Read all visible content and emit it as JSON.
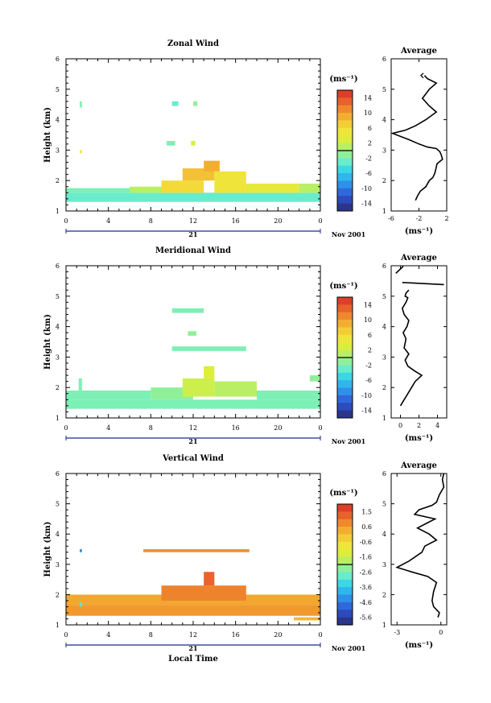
{
  "chart_data": [
    {
      "type": "heatmap",
      "title": "Zonal Wind",
      "ylabel": "Height (km)",
      "xlabel": "",
      "xlim": [
        0,
        24
      ],
      "ylim": [
        1,
        6
      ],
      "xticks": [
        "0",
        "4",
        "8",
        "12",
        "16",
        "20",
        "0"
      ],
      "yticks": [
        "1",
        "2",
        "3",
        "4",
        "5",
        "6"
      ],
      "date_day": "21",
      "date_label": "Nov 2001",
      "colorbar": {
        "unit": "(ms⁻¹)",
        "ticks": [
          "14",
          "10",
          "6",
          "2",
          "-2",
          "-6",
          "-10",
          "-14"
        ],
        "min": -16,
        "max": 16
      },
      "cell_groups": [
        {
          "x": [
            0,
            24
          ],
          "y": [
            1.3,
            1.6
          ],
          "value": -3
        },
        {
          "x": [
            0,
            6
          ],
          "y": [
            1.6,
            1.75
          ],
          "value": -2
        },
        {
          "x": [
            6,
            9
          ],
          "y": [
            1.6,
            1.8
          ],
          "value": 1
        },
        {
          "x": [
            9,
            13
          ],
          "y": [
            1.6,
            2.0
          ],
          "value": 6
        },
        {
          "x": [
            11,
            14
          ],
          "y": [
            2.0,
            2.4
          ],
          "value": 8
        },
        {
          "x": [
            13,
            14.5
          ],
          "y": [
            2.3,
            2.65
          ],
          "value": 9
        },
        {
          "x": [
            14,
            17
          ],
          "y": [
            1.6,
            2.3
          ],
          "value": 5
        },
        {
          "x": [
            17,
            22
          ],
          "y": [
            1.6,
            1.9
          ],
          "value": 4
        },
        {
          "x": [
            22,
            24
          ],
          "y": [
            1.6,
            1.9
          ],
          "value": 1
        },
        {
          "x": [
            1.3,
            1.5
          ],
          "y": [
            4.4,
            4.6
          ],
          "value": -2
        },
        {
          "x": [
            1.3,
            1.5
          ],
          "y": [
            2.9,
            3.0
          ],
          "value": 5
        },
        {
          "x": [
            10,
            10.6
          ],
          "y": [
            4.45,
            4.6
          ],
          "value": -3
        },
        {
          "x": [
            12,
            12.4
          ],
          "y": [
            4.45,
            4.6
          ],
          "value": -1
        },
        {
          "x": [
            9.5,
            10.3
          ],
          "y": [
            3.15,
            3.3
          ],
          "value": -2
        },
        {
          "x": [
            11.8,
            12.2
          ],
          "y": [
            3.15,
            3.3
          ],
          "value": 3
        }
      ],
      "average_panel": {
        "title": "Average",
        "xlabel": "(ms⁻¹)",
        "xlim": [
          -6,
          2
        ],
        "xticks": [
          "-6",
          "-2",
          "2"
        ],
        "ylim": [
          1,
          6
        ],
        "yticks": [
          "1",
          "2",
          "3",
          "4",
          "5",
          "6"
        ],
        "profile": {
          "x": [
            -2.5,
            -2.2,
            -1.8,
            -1.0,
            -0.5,
            0.0,
            0.3,
            0.5,
            0.6,
            1.4,
            1.2,
            1.0,
            0.5,
            -0.8,
            -2.0,
            -3.5,
            -5.8,
            -4.0,
            -2.5,
            -1.0,
            0.5,
            -0.5,
            -1.5,
            -1.0,
            -0.5,
            0.5,
            -0.8,
            -1.2
          ],
          "y": [
            1.35,
            1.5,
            1.65,
            1.8,
            2.0,
            2.1,
            2.25,
            2.45,
            2.55,
            2.7,
            2.85,
            2.95,
            3.05,
            3.1,
            3.2,
            3.35,
            3.55,
            3.65,
            3.8,
            4.0,
            4.25,
            4.45,
            4.7,
            4.85,
            5.0,
            5.2,
            5.35,
            5.45
          ]
        },
        "marker": {
          "x": -1.6,
          "y": 5.45
        }
      }
    },
    {
      "type": "heatmap",
      "title": "Meridional Wind",
      "ylabel": "Height (km)",
      "xlabel": "",
      "xlim": [
        0,
        24
      ],
      "ylim": [
        1,
        6
      ],
      "xticks": [
        "0",
        "4",
        "8",
        "12",
        "16",
        "20",
        "0"
      ],
      "yticks": [
        "1",
        "2",
        "3",
        "4",
        "5",
        "6"
      ],
      "date_day": "21",
      "date_label": "Nov 2001",
      "colorbar": {
        "unit": "(ms⁻¹)",
        "ticks": [
          "14",
          "10",
          "6",
          "2",
          "-2",
          "-6",
          "-10",
          "-14"
        ],
        "min": -16,
        "max": 16
      },
      "cell_groups": [
        {
          "x": [
            0,
            24
          ],
          "y": [
            1.3,
            1.6
          ],
          "value": -2
        },
        {
          "x": [
            0,
            8
          ],
          "y": [
            1.6,
            1.9
          ],
          "value": -2
        },
        {
          "x": [
            8,
            12
          ],
          "y": [
            1.6,
            2.0
          ],
          "value": -1
        },
        {
          "x": [
            11,
            14
          ],
          "y": [
            1.7,
            2.3
          ],
          "value": 2
        },
        {
          "x": [
            13,
            14
          ],
          "y": [
            2.3,
            2.7
          ],
          "value": 3
        },
        {
          "x": [
            14,
            18
          ],
          "y": [
            1.7,
            2.2
          ],
          "value": 1
        },
        {
          "x": [
            18,
            24
          ],
          "y": [
            1.6,
            1.9
          ],
          "value": -2
        },
        {
          "x": [
            1.2,
            1.5
          ],
          "y": [
            1.9,
            2.3
          ],
          "value": -2
        },
        {
          "x": [
            10,
            13
          ],
          "y": [
            4.45,
            4.6
          ],
          "value": -2
        },
        {
          "x": [
            11.5,
            12.3
          ],
          "y": [
            3.7,
            3.85
          ],
          "value": -1
        },
        {
          "x": [
            10,
            17
          ],
          "y": [
            3.2,
            3.35
          ],
          "value": -2
        },
        {
          "x": [
            23,
            24
          ],
          "y": [
            2.2,
            2.4
          ],
          "value": -1
        }
      ],
      "average_panel": {
        "title": "Average",
        "xlabel": "(ms⁻¹)",
        "xlim": [
          -1,
          5
        ],
        "xticks": [
          "0",
          "2",
          "4"
        ],
        "ylim": [
          1,
          6
        ],
        "yticks": [
          "1",
          "2",
          "3",
          "4",
          "5",
          "6"
        ],
        "profile": {
          "x": [
            0.0,
            0.4,
            0.8,
            1.2,
            1.6,
            2.3,
            1.5,
            0.8,
            0.5,
            0.9,
            0.4,
            0.6,
            0.3,
            0.7,
            0.9,
            0.4,
            0.2,
            0.6,
            0.8,
            0.5,
            0.6,
            0.9
          ],
          "y": [
            1.4,
            1.6,
            1.8,
            2.0,
            2.2,
            2.4,
            2.55,
            2.7,
            2.9,
            3.1,
            3.3,
            3.6,
            3.8,
            4.0,
            4.2,
            4.4,
            4.6,
            4.8,
            4.95,
            5.0,
            5.1,
            5.2
          ]
        },
        "upper_segment": {
          "x": [
            0.2,
            4.7
          ],
          "y": [
            5.45,
            5.38
          ]
        },
        "top_segment": {
          "x": [
            -0.5,
            0.3
          ],
          "y": [
            5.75,
            5.98
          ]
        }
      }
    },
    {
      "type": "heatmap",
      "title": "Vertical Wind",
      "ylabel": "Height (km)",
      "xlabel": "Local Time",
      "xlim": [
        0,
        24
      ],
      "ylim": [
        1,
        6
      ],
      "xticks": [
        "0",
        "4",
        "8",
        "12",
        "16",
        "20",
        "0"
      ],
      "yticks": [
        "1",
        "2",
        "3",
        "4",
        "5",
        "6"
      ],
      "date_day": "21",
      "date_label": "Nov 2001",
      "colorbar": {
        "unit": "(ms⁻¹)",
        "ticks": [
          "1.5",
          "0.6",
          "-0.6",
          "-1.6",
          "-2.6",
          "-3.6",
          "-4.6",
          "-5.6"
        ],
        "min": -6.2,
        "max": 2.0
      },
      "cell_groups": [
        {
          "x": [
            0,
            24
          ],
          "y": [
            1.3,
            1.65
          ],
          "value": 0.5
        },
        {
          "x": [
            0,
            24
          ],
          "y": [
            1.65,
            2.0
          ],
          "value": 0.3
        },
        {
          "x": [
            9,
            17
          ],
          "y": [
            1.8,
            2.3
          ],
          "value": 0.8
        },
        {
          "x": [
            13,
            14
          ],
          "y": [
            2.3,
            2.75
          ],
          "value": 1.2
        },
        {
          "x": [
            7.3,
            17.3
          ],
          "y": [
            3.4,
            3.5
          ],
          "value": 0.6
        },
        {
          "x": [
            1.3,
            1.5
          ],
          "y": [
            3.4,
            3.5
          ],
          "value": -4.5
        },
        {
          "x": [
            1.3,
            1.5
          ],
          "y": [
            1.6,
            1.75
          ],
          "value": -3.0
        },
        {
          "x": [
            21.5,
            24
          ],
          "y": [
            1.15,
            1.25
          ],
          "value": 0.1
        }
      ],
      "average_panel": {
        "title": "Average",
        "xlabel": "(ms⁻¹)",
        "xlim": [
          -3.4,
          0.4
        ],
        "xticks": [
          "-3",
          "0"
        ],
        "ylim": [
          1,
          6
        ],
        "yticks": [
          "1",
          "2",
          "3",
          "4",
          "5",
          "6"
        ],
        "profile": {
          "x": [
            -0.2,
            -0.1,
            -0.5,
            -0.6,
            -0.5,
            -0.3,
            -0.9,
            -2.0,
            -3.0,
            -2.2,
            -1.3,
            -1.1,
            -0.3,
            -0.8,
            -1.6,
            -1.0,
            -0.4,
            -1.8,
            -1.5,
            -0.6,
            -0.3,
            -0.1,
            0.2,
            0.1,
            0.2
          ],
          "y": [
            1.25,
            1.4,
            1.6,
            1.8,
            2.1,
            2.4,
            2.6,
            2.75,
            2.9,
            3.1,
            3.4,
            3.6,
            3.8,
            4.0,
            4.2,
            4.35,
            4.5,
            4.65,
            4.8,
            4.95,
            5.05,
            5.3,
            5.55,
            5.8,
            6.0
          ]
        }
      }
    }
  ]
}
